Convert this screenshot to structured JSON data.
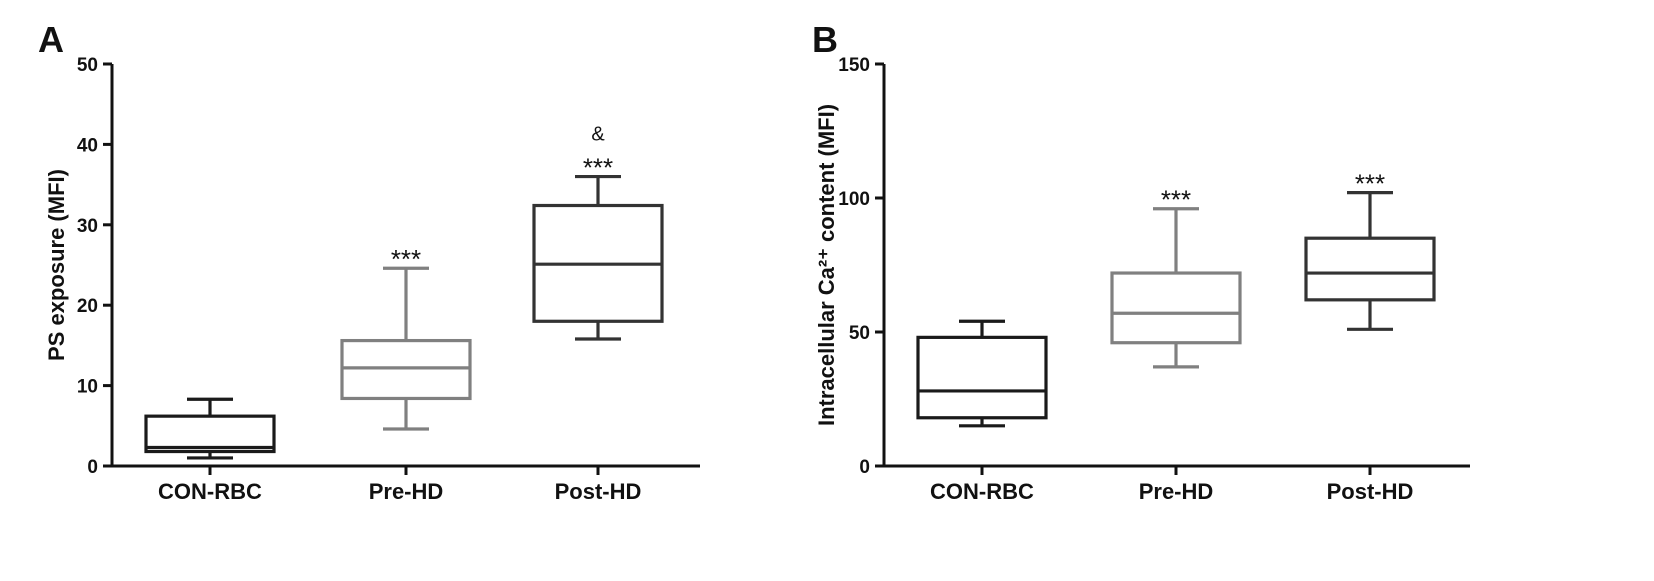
{
  "chart_data": [
    {
      "type": "box",
      "panel": "A",
      "ylabel": "PS exposure (MFI)",
      "ylim": [
        0,
        50
      ],
      "yticks": [
        0,
        10,
        20,
        30,
        40,
        50
      ],
      "categories": [
        "CON-RBC",
        "Pre-HD",
        "Post-HD"
      ],
      "colors": [
        "#1a1a1a",
        "#808080",
        "#333333"
      ],
      "boxes": [
        {
          "min": 1.0,
          "q1": 1.8,
          "median": 2.3,
          "q3": 6.2,
          "max": 8.3
        },
        {
          "min": 4.6,
          "q1": 8.4,
          "median": 12.2,
          "q3": 15.6,
          "max": 24.6
        },
        {
          "min": 15.8,
          "q1": 18.0,
          "median": 25.1,
          "q3": 32.4,
          "max": 36.0
        }
      ],
      "annotations": [
        {
          "category": "Pre-HD",
          "text": "***"
        },
        {
          "category": "Post-HD",
          "text": "***"
        },
        {
          "category": "Post-HD",
          "text": "&"
        }
      ]
    },
    {
      "type": "box",
      "panel": "B",
      "ylabel": "Intracellular Ca²⁺ content (MFI)",
      "ylim": [
        0,
        150
      ],
      "yticks": [
        0,
        50,
        100,
        150
      ],
      "categories": [
        "CON-RBC",
        "Pre-HD",
        "Post-HD"
      ],
      "colors": [
        "#1a1a1a",
        "#808080",
        "#333333"
      ],
      "boxes": [
        {
          "min": 15,
          "q1": 18,
          "median": 28,
          "q3": 48,
          "max": 54
        },
        {
          "min": 37,
          "q1": 46,
          "median": 57,
          "q3": 72,
          "max": 96
        },
        {
          "min": 51,
          "q1": 62,
          "median": 72,
          "q3": 85,
          "max": 102
        }
      ],
      "annotations": [
        {
          "category": "Pre-HD",
          "text": "***"
        },
        {
          "category": "Post-HD",
          "text": "***"
        }
      ]
    }
  ]
}
